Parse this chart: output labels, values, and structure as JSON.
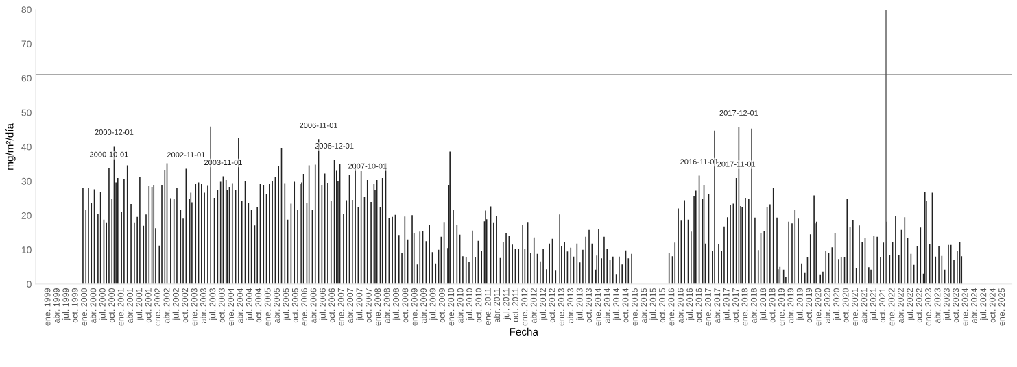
{
  "chart_data": {
    "type": "bar",
    "xlabel": "Fecha",
    "ylabel": "mg/m²/día",
    "xlim": [
      1998.66,
      2025.26
    ],
    "ylim": [
      0,
      80
    ],
    "yticks": [
      0,
      10,
      20,
      30,
      40,
      50,
      60,
      70,
      80
    ],
    "xticks": [
      {
        "value": 1999.0,
        "label": "ene. 1999"
      },
      {
        "value": 1999.25,
        "label": "abr. 1999"
      },
      {
        "value": 1999.5,
        "label": "jul. 1999"
      },
      {
        "value": 1999.75,
        "label": "oct. 1999"
      },
      {
        "value": 2000.0,
        "label": "ene. 2000"
      },
      {
        "value": 2000.25,
        "label": "abr. 2000"
      },
      {
        "value": 2000.5,
        "label": "jul. 2000"
      },
      {
        "value": 2000.75,
        "label": "oct. 2000"
      },
      {
        "value": 2001.0,
        "label": "ene. 2001"
      },
      {
        "value": 2001.25,
        "label": "abr. 2001"
      },
      {
        "value": 2001.5,
        "label": "jul. 2001"
      },
      {
        "value": 2001.75,
        "label": "oct. 2001"
      },
      {
        "value": 2002.0,
        "label": "ene. 2002"
      },
      {
        "value": 2002.25,
        "label": "abr. 2002"
      },
      {
        "value": 2002.5,
        "label": "jul. 2002"
      },
      {
        "value": 2002.75,
        "label": "oct. 2002"
      },
      {
        "value": 2003.0,
        "label": "ene. 2003"
      },
      {
        "value": 2003.25,
        "label": "abr. 2003"
      },
      {
        "value": 2003.5,
        "label": "jul. 2003"
      },
      {
        "value": 2003.75,
        "label": "oct. 2003"
      },
      {
        "value": 2004.0,
        "label": "ene. 2004"
      },
      {
        "value": 2004.25,
        "label": "abr. 2004"
      },
      {
        "value": 2004.5,
        "label": "jul. 2004"
      },
      {
        "value": 2004.75,
        "label": "oct. 2004"
      },
      {
        "value": 2005.0,
        "label": "ene. 2005"
      },
      {
        "value": 2005.25,
        "label": "abr. 2005"
      },
      {
        "value": 2005.5,
        "label": "jul. 2005"
      },
      {
        "value": 2005.75,
        "label": "oct. 2005"
      },
      {
        "value": 2006.0,
        "label": "ene. 2006"
      },
      {
        "value": 2006.25,
        "label": "abr. 2006"
      },
      {
        "value": 2006.5,
        "label": "jul. 2006"
      },
      {
        "value": 2006.75,
        "label": "oct. 2006"
      },
      {
        "value": 2007.0,
        "label": "ene. 2007"
      },
      {
        "value": 2007.25,
        "label": "abr. 2007"
      },
      {
        "value": 2007.5,
        "label": "jul. 2007"
      },
      {
        "value": 2007.75,
        "label": "oct. 2007"
      },
      {
        "value": 2008.0,
        "label": "ene. 2008"
      },
      {
        "value": 2008.25,
        "label": "abr. 2008"
      },
      {
        "value": 2008.5,
        "label": "jul. 2008"
      },
      {
        "value": 2008.75,
        "label": "oct. 2008"
      },
      {
        "value": 2009.0,
        "label": "ene. 2009"
      },
      {
        "value": 2009.25,
        "label": "abr. 2009"
      },
      {
        "value": 2009.5,
        "label": "jul. 2009"
      },
      {
        "value": 2009.75,
        "label": "oct. 2009"
      },
      {
        "value": 2010.0,
        "label": "ene. 2010"
      },
      {
        "value": 2010.25,
        "label": "abr. 2010"
      },
      {
        "value": 2010.5,
        "label": "jul. 2010"
      },
      {
        "value": 2010.75,
        "label": "oct. 2010"
      },
      {
        "value": 2011.0,
        "label": "ene. 2011"
      },
      {
        "value": 2011.25,
        "label": "abr. 2011"
      },
      {
        "value": 2011.5,
        "label": "jul. 2011"
      },
      {
        "value": 2011.75,
        "label": "oct. 2011"
      },
      {
        "value": 2012.0,
        "label": "ene. 2012"
      },
      {
        "value": 2012.25,
        "label": "abr. 2012"
      },
      {
        "value": 2012.5,
        "label": "jul. 2012"
      },
      {
        "value": 2012.75,
        "label": "oct. 2012"
      },
      {
        "value": 2013.0,
        "label": "ene. 2013"
      },
      {
        "value": 2013.25,
        "label": "abr. 2013"
      },
      {
        "value": 2013.5,
        "label": "jul. 2013"
      },
      {
        "value": 2013.75,
        "label": "oct. 2013"
      },
      {
        "value": 2014.0,
        "label": "ene. 2014"
      },
      {
        "value": 2014.25,
        "label": "abr. 2014"
      },
      {
        "value": 2014.5,
        "label": "jul. 2014"
      },
      {
        "value": 2014.75,
        "label": "oct. 2014"
      },
      {
        "value": 2015.0,
        "label": "ene. 2015"
      },
      {
        "value": 2015.25,
        "label": "abr. 2015"
      },
      {
        "value": 2015.5,
        "label": "jul. 2015"
      },
      {
        "value": 2015.75,
        "label": "oct. 2015"
      },
      {
        "value": 2016.0,
        "label": "ene. 2016"
      },
      {
        "value": 2016.25,
        "label": "abr. 2016"
      },
      {
        "value": 2016.5,
        "label": "jul. 2016"
      },
      {
        "value": 2016.75,
        "label": "oct. 2016"
      },
      {
        "value": 2017.0,
        "label": "ene. 2017"
      },
      {
        "value": 2017.25,
        "label": "abr. 2017"
      },
      {
        "value": 2017.5,
        "label": "jul. 2017"
      },
      {
        "value": 2017.75,
        "label": "oct. 2017"
      },
      {
        "value": 2018.0,
        "label": "ene. 2018"
      },
      {
        "value": 2018.25,
        "label": "abr. 2018"
      },
      {
        "value": 2018.5,
        "label": "jul. 2018"
      },
      {
        "value": 2018.75,
        "label": "oct. 2018"
      },
      {
        "value": 2019.0,
        "label": "ene. 2019"
      },
      {
        "value": 2019.25,
        "label": "abr. 2019"
      },
      {
        "value": 2019.5,
        "label": "jul. 2019"
      },
      {
        "value": 2019.75,
        "label": "oct. 2019"
      },
      {
        "value": 2020.0,
        "label": "ene. 2020"
      },
      {
        "value": 2020.25,
        "label": "abr. 2020"
      },
      {
        "value": 2020.5,
        "label": "jul. 2020"
      },
      {
        "value": 2020.75,
        "label": "oct. 2020"
      },
      {
        "value": 2021.0,
        "label": "ene. 2021"
      },
      {
        "value": 2021.25,
        "label": "abr. 2021"
      },
      {
        "value": 2021.5,
        "label": "jul. 2021"
      },
      {
        "value": 2021.75,
        "label": "oct. 2021"
      },
      {
        "value": 2022.0,
        "label": "ene. 2022"
      },
      {
        "value": 2022.25,
        "label": "abr. 2022"
      },
      {
        "value": 2022.5,
        "label": "jul. 2022"
      },
      {
        "value": 2022.75,
        "label": "oct. 2022"
      },
      {
        "value": 2023.0,
        "label": "ene. 2023"
      },
      {
        "value": 2023.25,
        "label": "abr. 2023"
      },
      {
        "value": 2023.5,
        "label": "jul. 2023"
      },
      {
        "value": 2023.75,
        "label": "oct. 2023"
      },
      {
        "value": 2024.0,
        "label": "ene. 2024"
      },
      {
        "value": 2024.25,
        "label": "abr. 2024"
      },
      {
        "value": 2024.5,
        "label": "jul. 2024"
      },
      {
        "value": 2024.75,
        "label": "oct. 2024"
      },
      {
        "value": 2025.0,
        "label": "ene. 2025"
      }
    ],
    "ref_lines": [
      {
        "axis": "y",
        "value": 61,
        "color": "#555555"
      },
      {
        "axis": "x",
        "value": 2021.83,
        "color": "#555555"
      }
    ],
    "annotations": [
      {
        "text": "2000-12-01",
        "x": 2000.8,
        "y": 40.2
      },
      {
        "text": "2000-10-01",
        "x": 2000.66,
        "y": 33.7
      },
      {
        "text": "2002-11-01",
        "x": 2002.76,
        "y": 33.6
      },
      {
        "text": "2003-11-01",
        "x": 2003.77,
        "y": 31.4
      },
      {
        "text": "2006-11-01",
        "x": 2006.37,
        "y": 42.2
      },
      {
        "text": "2006-12-01",
        "x": 2006.8,
        "y": 36.2
      },
      {
        "text": "2007-10-01",
        "x": 2007.7,
        "y": 30.3
      },
      {
        "text": "2016-11-01",
        "x": 2016.74,
        "y": 31.6
      },
      {
        "text": "2017-12-01",
        "x": 2017.82,
        "y": 45.8
      },
      {
        "text": "2017-11-01",
        "x": 2017.75,
        "y": 30.9
      }
    ],
    "series": [
      {
        "color": "#222222",
        "x": [
          1999.95,
          2000.03,
          2000.1,
          2000.18,
          2000.26,
          2000.36,
          2000.43,
          2000.52,
          2000.59,
          2000.66,
          2000.74,
          2000.8,
          2000.85,
          2000.9,
          2001.0,
          2001.07,
          2001.16,
          2001.26,
          2001.35,
          2001.43,
          2001.5,
          2001.6,
          2001.67,
          2001.75,
          2001.83,
          2001.88,
          2001.93,
          2002.03,
          2002.1,
          2002.18,
          2002.24,
          2002.34,
          2002.43,
          2002.51,
          2002.61,
          2002.68,
          2002.76,
          2002.85,
          2002.89,
          2002.92,
          2003.02,
          2003.1,
          2003.18,
          2003.26,
          2003.35,
          2003.43,
          2003.53,
          2003.62,
          2003.7,
          2003.77,
          2003.85,
          2003.88,
          2003.94,
          2004.02,
          2004.11,
          2004.19,
          2004.28,
          2004.37,
          2004.46,
          2004.54,
          2004.63,
          2004.7,
          2004.78,
          2004.87,
          2004.95,
          2005.03,
          2005.11,
          2005.19,
          2005.28,
          2005.36,
          2005.45,
          2005.53,
          2005.62,
          2005.71,
          2005.8,
          2005.87,
          2005.91,
          2005.96,
          2006.05,
          2006.11,
          2006.2,
          2006.28,
          2006.37,
          2006.46,
          2006.54,
          2006.62,
          2006.71,
          2006.8,
          2006.86,
          2006.9,
          2006.95,
          2007.05,
          2007.13,
          2007.21,
          2007.29,
          2007.37,
          2007.45,
          2007.53,
          2007.62,
          2007.7,
          2007.8,
          2007.88,
          2007.91,
          2007.96,
          2008.05,
          2008.11,
          2008.2,
          2008.29,
          2008.38,
          2008.46,
          2008.56,
          2008.64,
          2008.72,
          2008.8,
          2008.92,
          2008.97,
          2009.06,
          2009.13,
          2009.21,
          2009.3,
          2009.39,
          2009.47,
          2009.56,
          2009.64,
          2009.71,
          2009.79,
          2009.89,
          2009.92,
          2009.95,
          2010.04,
          2010.14,
          2010.22,
          2010.3,
          2010.39,
          2010.47,
          2010.56,
          2010.64,
          2010.72,
          2010.81,
          2010.89,
          2010.92,
          2010.95,
          2011.06,
          2011.14,
          2011.22,
          2011.32,
          2011.4,
          2011.48,
          2011.56,
          2011.65,
          2011.73,
          2011.82,
          2011.93,
          2011.99,
          2012.07,
          2012.15,
          2012.24,
          2012.33,
          2012.41,
          2012.49,
          2012.58,
          2012.66,
          2012.74,
          2012.83,
          2012.94,
          2012.99,
          2013.07,
          2013.15,
          2013.24,
          2013.32,
          2013.41,
          2013.49,
          2013.57,
          2013.65,
          2013.74,
          2013.82,
          2013.92,
          2013.95,
          2014.0,
          2014.08,
          2014.15,
          2014.23,
          2014.31,
          2014.39,
          2014.48,
          2014.56,
          2014.64,
          2014.74,
          2014.81,
          2014.9,
          2015.92,
          2016.01,
          2016.08,
          2016.17,
          2016.25,
          2016.34,
          2016.44,
          2016.52,
          2016.6,
          2016.65,
          2016.74,
          2016.83,
          2016.87,
          2016.91,
          2017.0,
          2017.1,
          2017.16,
          2017.27,
          2017.35,
          2017.42,
          2017.51,
          2017.59,
          2017.67,
          2017.75,
          2017.82,
          2017.87,
          2017.91,
          2018.0,
          2018.09,
          2018.17,
          2018.26,
          2018.35,
          2018.42,
          2018.51,
          2018.59,
          2018.67,
          2018.76,
          2018.86,
          2018.89,
          2018.94,
          2019.04,
          2019.1,
          2019.18,
          2019.27,
          2019.35,
          2019.44,
          2019.53,
          2019.62,
          2019.69,
          2019.77,
          2019.87,
          2019.9,
          2019.94,
          2020.04,
          2020.11,
          2020.19,
          2020.27,
          2020.36,
          2020.44,
          2020.54,
          2020.61,
          2020.7,
          2020.77,
          2020.85,
          2020.93,
          2021.02,
          2021.1,
          2021.18,
          2021.26,
          2021.36,
          2021.42,
          2021.5,
          2021.59,
          2021.68,
          2021.76,
          2021.85,
          2021.93,
          2022.01,
          2022.09,
          2022.18,
          2022.25,
          2022.34,
          2022.42,
          2022.51,
          2022.59,
          2022.68,
          2022.77,
          2022.85,
          2022.89,
          2022.93,
          2023.02,
          2023.09,
          2023.18,
          2023.27,
          2023.35,
          2023.43,
          2023.53,
          2023.6,
          2023.68,
          2023.77,
          2023.84,
          2023.89
        ],
        "values": [
          27.9,
          21.6,
          27.9,
          23.7,
          27.6,
          20.4,
          26.9,
          18.8,
          18,
          33.7,
          24.7,
          40.2,
          29.6,
          30.9,
          21.1,
          30.7,
          34.6,
          23.3,
          18,
          19.6,
          31.2,
          17,
          20.3,
          28.6,
          28.3,
          28.9,
          16.3,
          11.2,
          28.9,
          33.2,
          35.2,
          25,
          24.9,
          27.9,
          21.7,
          19.1,
          33.6,
          24.9,
          26.6,
          23.8,
          29.1,
          29.6,
          29.3,
          26.6,
          28.8,
          45.9,
          25.1,
          27.3,
          29.8,
          31.4,
          30.3,
          27.3,
          28.3,
          29.4,
          27.3,
          42.6,
          24.1,
          30.1,
          23.7,
          21.6,
          17.1,
          22.4,
          29.3,
          28.9,
          26.3,
          29.3,
          30.1,
          31.2,
          34.4,
          39.7,
          29.4,
          18.8,
          23.4,
          29.8,
          21.6,
          29.1,
          29.6,
          32.1,
          23.6,
          34.6,
          21.7,
          34.8,
          42.2,
          28.9,
          32.2,
          29.5,
          24.3,
          36.2,
          33,
          29.9,
          34.9,
          20.4,
          24.4,
          31.7,
          24.5,
          33.8,
          22.5,
          32.9,
          25.3,
          30.3,
          23.9,
          29.1,
          27.3,
          30.3,
          22.5,
          30.9,
          35.2,
          19.3,
          19.6,
          20.2,
          14.3,
          9,
          19.7,
          13,
          20.1,
          14.9,
          5.7,
          15.3,
          15.5,
          12.5,
          17.3,
          9.3,
          6,
          10,
          13.8,
          18.1,
          10.5,
          28.9,
          38.6,
          21.7,
          17.3,
          14.4,
          8.1,
          7.8,
          6.5,
          15.6,
          7.8,
          12.6,
          9.6,
          18.3,
          21.4,
          18.9,
          22.6,
          18,
          19.9,
          7.6,
          12.2,
          14.8,
          14,
          11.5,
          10.3,
          10.3,
          17.3,
          10.3,
          18.1,
          9,
          13.6,
          8.8,
          6.6,
          10.3,
          4.3,
          11.8,
          13.2,
          3.9,
          20.3,
          11,
          12.3,
          9.5,
          10.6,
          8,
          11.8,
          6.3,
          10,
          13.8,
          15.8,
          11.8,
          4.2,
          8.3,
          16,
          7.5,
          13.8,
          10.3,
          7.1,
          8,
          2.9,
          8,
          5.7,
          9.8,
          7.5,
          8.8,
          9.0,
          8.1,
          12.1,
          22,
          18.5,
          24.4,
          18.8,
          15.3,
          25.7,
          27.2,
          31.6,
          24.9,
          28.9,
          11.8,
          26.2,
          9.7,
          44.7,
          11.6,
          9.7,
          16.8,
          19.5,
          22.9,
          23.4,
          30.9,
          45.8,
          22.7,
          22.3,
          25.1,
          24.9,
          45.3,
          19.4,
          9.9,
          14.8,
          15.5,
          22.5,
          23.2,
          27.9,
          19.4,
          4.3,
          5,
          4.2,
          2.1,
          18.2,
          17.7,
          21.6,
          19.1,
          6,
          3.4,
          7.9,
          14.5,
          25.8,
          17.7,
          18.2,
          2.8,
          3.6,
          9.7,
          9,
          10.7,
          14.8,
          7.3,
          7.9,
          7.9,
          24.8,
          16.6,
          18.6,
          4.7,
          17.1,
          12.3,
          13.4,
          4.9,
          4.2,
          14,
          13.8,
          7.9,
          12.1,
          18.2,
          8.5,
          12.3,
          19.9,
          8.4,
          15.8,
          19.5,
          13.4,
          8.8,
          5.6,
          11,
          16.5,
          3,
          26.8,
          24.2,
          11.6,
          26.6,
          8,
          11,
          8.2,
          4.2,
          11.4,
          11.4,
          7,
          9.7,
          12.3,
          8.1
        ]
      }
    ]
  }
}
